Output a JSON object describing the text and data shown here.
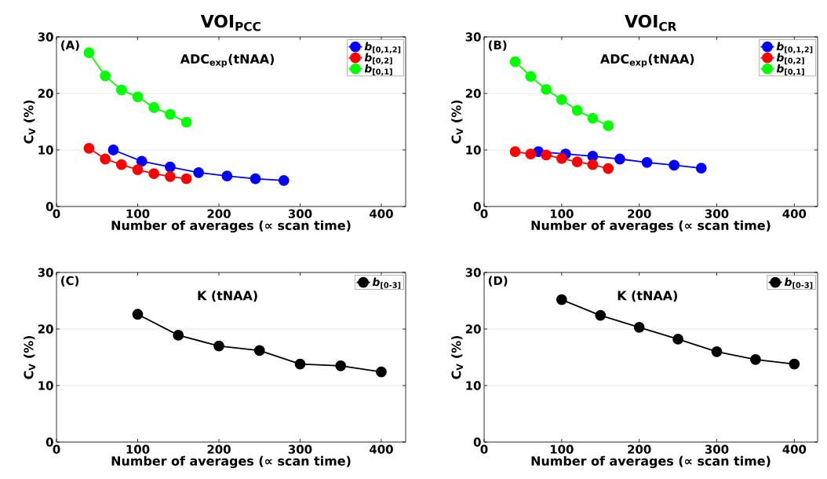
{
  "chart_data": [
    {
      "type": "line",
      "title": "VOI$_{PCC}$",
      "xlabel": "Number of averages (∝ scan time)",
      "ylabel": "C$_{V}$ (%)",
      "annotations": [
        "(A)",
        "ADC$_{exp}$(tNAA)"
      ],
      "xlim": [
        0,
        430
      ],
      "ylim": [
        0,
        30
      ],
      "xticks": [
        0,
        100,
        200,
        300,
        400
      ],
      "yticks": [
        0,
        10,
        20,
        30
      ],
      "grid": "y",
      "legend": "top right",
      "marker": "circle",
      "line_style": "solid",
      "series": [
        {
          "name": "*b*$_{[0,1,2]}$",
          "color": "#0000ff",
          "x": [
            70,
            105,
            140,
            175,
            210,
            245,
            280
          ],
          "values": [
            10.0,
            8.0,
            7.0,
            6.0,
            5.4,
            4.9,
            4.6
          ]
        },
        {
          "name": "*b*$_{[0,2]}$",
          "color": "#ff0000",
          "x": [
            40,
            60,
            80,
            100,
            120,
            140,
            160
          ],
          "values": [
            10.3,
            8.4,
            7.4,
            6.5,
            5.8,
            5.3,
            4.9
          ]
        },
        {
          "name": "*b*$_{[0,1]}$",
          "color": "#00ff00",
          "x": [
            40,
            60,
            80,
            100,
            120,
            140,
            160
          ],
          "values": [
            27.2,
            23.1,
            20.6,
            19.4,
            17.5,
            16.3,
            14.9
          ]
        }
      ]
    },
    {
      "type": "line",
      "title": "VOI$_{CR}$",
      "xlabel": "Number of averages (∝ scan time)",
      "ylabel": "C$_{V}$ (%)",
      "annotations": [
        "(B)",
        "ADC$_{exp}$(tNAA)"
      ],
      "xlim": [
        0,
        430
      ],
      "ylim": [
        0,
        30
      ],
      "xticks": [
        0,
        100,
        200,
        300,
        400
      ],
      "yticks": [
        0,
        10,
        20,
        30
      ],
      "grid": "y",
      "legend": "top right",
      "marker": "circle",
      "line_style": "solid",
      "series": [
        {
          "name": "*b*$_{[0,1,2]}$",
          "color": "#0000ff",
          "x": [
            70,
            105,
            140,
            175,
            210,
            245,
            280
          ],
          "values": [
            9.7,
            9.3,
            8.9,
            8.4,
            7.8,
            7.3,
            6.8
          ]
        },
        {
          "name": "*b*$_{[0,2]}$",
          "color": "#ff0000",
          "x": [
            40,
            60,
            80,
            100,
            120,
            140,
            160
          ],
          "values": [
            9.7,
            9.3,
            9.1,
            8.5,
            7.9,
            7.4,
            6.7
          ]
        },
        {
          "name": "*b*$_{[0,1]}$",
          "color": "#00ff00",
          "x": [
            40,
            60,
            80,
            100,
            120,
            140,
            160
          ],
          "values": [
            25.6,
            23.0,
            20.7,
            18.9,
            17.0,
            15.6,
            14.3
          ]
        }
      ]
    },
    {
      "type": "line",
      "xlabel": "Number of averages (∝ scan time)",
      "ylabel": "C$_{V}$ (%)",
      "annotations": [
        "(C)",
        "K (tNAA)"
      ],
      "xlim": [
        0,
        430
      ],
      "ylim": [
        0,
        30
      ],
      "xticks": [
        0,
        100,
        200,
        300,
        400
      ],
      "yticks": [
        0,
        10,
        20,
        30
      ],
      "grid": "y",
      "legend": "top right",
      "marker": "circle",
      "line_style": "solid",
      "series": [
        {
          "name": "*b*$_{[0-3]}$",
          "color": "#000000",
          "x": [
            100,
            150,
            200,
            250,
            300,
            350,
            400
          ],
          "values": [
            22.6,
            18.9,
            17.0,
            16.2,
            13.8,
            13.5,
            12.4
          ]
        }
      ]
    },
    {
      "type": "line",
      "xlabel": "Number of averages (∝ scan time)",
      "ylabel": "C$_{V}$ (%)",
      "annotations": [
        "(D)",
        "K (tNAA)"
      ],
      "xlim": [
        0,
        430
      ],
      "ylim": [
        0,
        30
      ],
      "xticks": [
        0,
        100,
        200,
        300,
        400
      ],
      "yticks": [
        0,
        10,
        20,
        30
      ],
      "grid": "y",
      "legend": "top right",
      "marker": "circle",
      "line_style": "solid",
      "series": [
        {
          "name": "*b*$_{[0-3]}$",
          "color": "#000000",
          "x": [
            100,
            150,
            200,
            250,
            300,
            350,
            400
          ],
          "values": [
            25.2,
            22.4,
            20.3,
            18.2,
            16.0,
            14.6,
            13.8
          ]
        }
      ]
    }
  ]
}
